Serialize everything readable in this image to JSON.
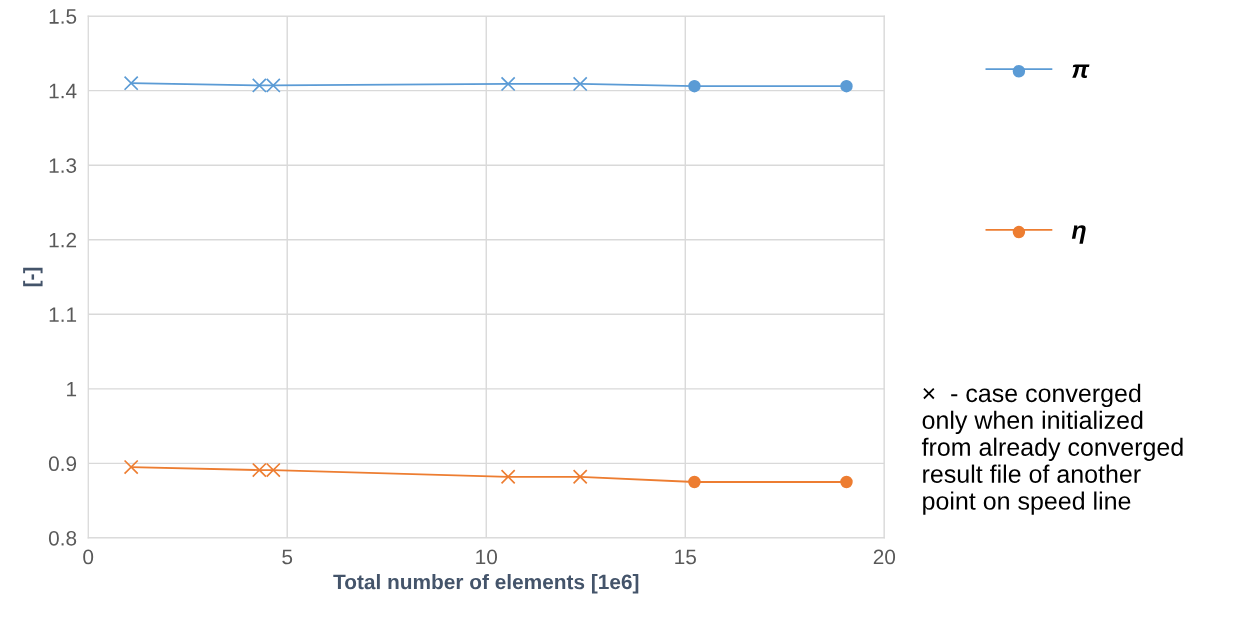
{
  "chart_data": {
    "type": "line",
    "xlabel": "Total number of elements [1e6]",
    "ylabel": "[-]",
    "x": [
      1.08,
      4.3,
      4.65,
      10.55,
      12.36,
      15.23,
      19.05
    ],
    "xlim": [
      0,
      20
    ],
    "xticks": [
      0,
      5,
      10,
      15,
      20
    ],
    "ylim": [
      0.8,
      1.5
    ],
    "yticks": [
      0.8,
      0.9,
      {
        "value": 1.0,
        "label": "1"
      },
      1.1,
      1.2,
      1.3,
      1.4,
      1.5
    ],
    "grid": true,
    "legend": "right",
    "series": [
      {
        "name": "π",
        "color": "#5b9bd5",
        "marker": "none",
        "values": [
          1.41,
          1.407,
          1.407,
          1.409,
          1.409,
          1.406,
          1.406
        ]
      },
      {
        "type": "scatter",
        "color": "#5b9bd5",
        "marker": "cross",
        "values": [
          1.41,
          1.407,
          1.407,
          1.409,
          1.409,
          null,
          null
        ]
      },
      {
        "type": "scatter",
        "color": "#5b9bd5",
        "marker": "circle",
        "values": [
          null,
          null,
          null,
          null,
          null,
          1.406,
          1.406
        ]
      },
      {
        "name": "η",
        "color": "#ed7d31",
        "marker": "none",
        "values": [
          0.895,
          0.891,
          0.891,
          0.882,
          0.882,
          0.875,
          0.875
        ]
      },
      {
        "type": "scatter",
        "color": "#ed7d31",
        "marker": "cross",
        "values": [
          0.895,
          0.891,
          0.891,
          0.882,
          0.882,
          null,
          null
        ]
      },
      {
        "type": "scatter",
        "color": "#ed7d31",
        "marker": "circle",
        "values": [
          null,
          null,
          null,
          null,
          null,
          0.875,
          0.875
        ]
      }
    ],
    "annotations": [
      "×  - case converged\nonly when initialized\nfrom already converged\nresult file of another\npoint on speed line"
    ]
  }
}
